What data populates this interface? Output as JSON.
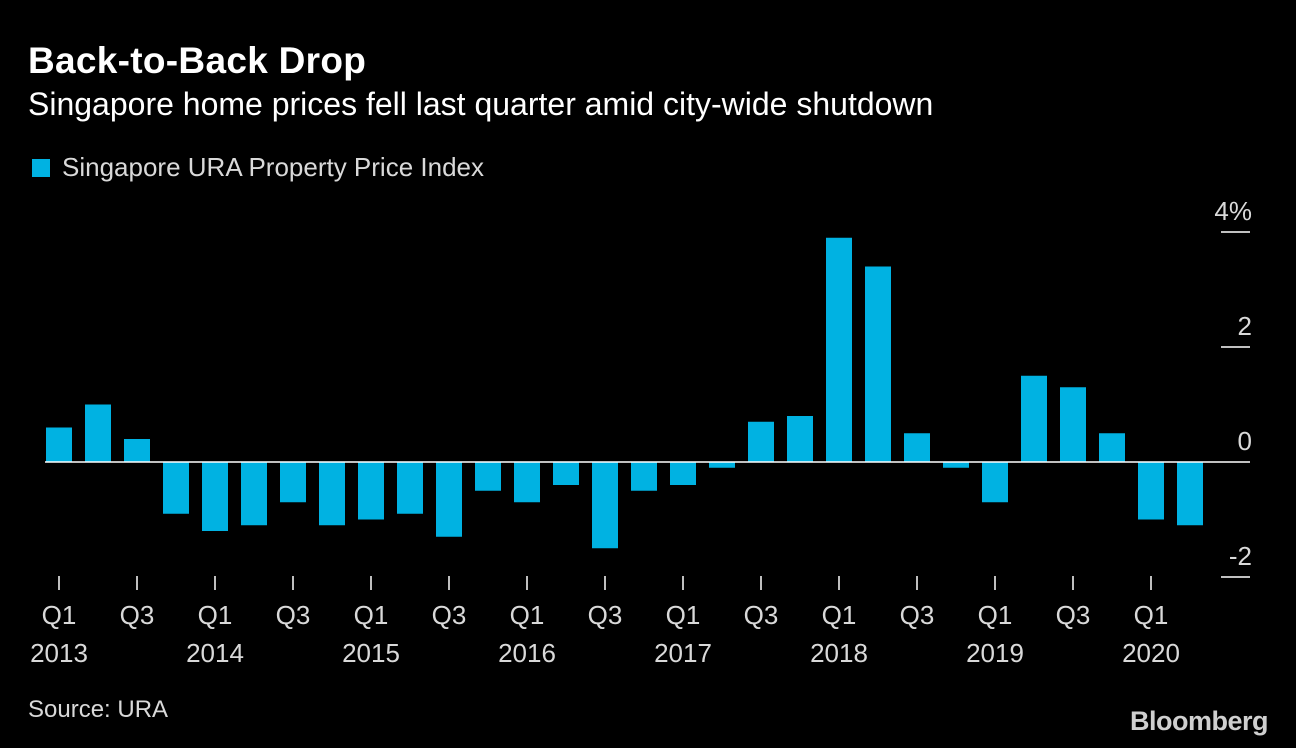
{
  "title": "Back-to-Back Drop",
  "subtitle": "Singapore home prices fell last quarter amid city-wide shutdown",
  "source": "Source: URA",
  "brand": "Bloomberg",
  "colors": {
    "background": "#000000",
    "bar": "#00b2e2",
    "text": "#ffffff",
    "muted_text": "#d9d9d9",
    "zero_line": "#ffffff"
  },
  "chart_data": {
    "type": "bar",
    "title": "Back-to-Back Drop",
    "subtitle": "Singapore home prices fell last quarter amid city-wide shutdown",
    "legend": [
      "Singapore URA Property Price Index"
    ],
    "legend_position": "top-left",
    "grid": false,
    "y_axis_position": "right",
    "ylim": [
      -2.2,
      4.3
    ],
    "y_ticks": [
      {
        "value": 4,
        "label": "4%"
      },
      {
        "value": 2,
        "label": "2"
      },
      {
        "value": 0,
        "label": "0"
      },
      {
        "value": -2,
        "label": "-2"
      }
    ],
    "categories": [
      "Q1 2013",
      "Q2 2013",
      "Q3 2013",
      "Q4 2013",
      "Q1 2014",
      "Q2 2014",
      "Q3 2014",
      "Q4 2014",
      "Q1 2015",
      "Q2 2015",
      "Q3 2015",
      "Q4 2015",
      "Q1 2016",
      "Q2 2016",
      "Q3 2016",
      "Q4 2016",
      "Q1 2017",
      "Q2 2017",
      "Q3 2017",
      "Q4 2017",
      "Q1 2018",
      "Q2 2018",
      "Q3 2018",
      "Q4 2018",
      "Q1 2019",
      "Q2 2019",
      "Q3 2019",
      "Q4 2019",
      "Q1 2020",
      "Q2 2020"
    ],
    "series": [
      {
        "name": "Singapore URA Property Price Index",
        "values": [
          0.6,
          1.0,
          0.4,
          -0.9,
          -1.2,
          -1.1,
          -0.7,
          -1.1,
          -1.0,
          -0.9,
          -1.3,
          -0.5,
          -0.7,
          -0.4,
          -1.5,
          -0.5,
          -0.4,
          -0.1,
          0.7,
          0.8,
          3.9,
          3.4,
          0.5,
          -0.1,
          -0.7,
          1.5,
          1.3,
          0.5,
          -1.0,
          -1.1
        ]
      }
    ],
    "x_tick_labels": [
      {
        "index": 0,
        "quarter": "Q1",
        "year": "2013"
      },
      {
        "index": 2,
        "quarter": "Q3",
        "year": ""
      },
      {
        "index": 4,
        "quarter": "Q1",
        "year": "2014"
      },
      {
        "index": 6,
        "quarter": "Q3",
        "year": ""
      },
      {
        "index": 8,
        "quarter": "Q1",
        "year": "2015"
      },
      {
        "index": 10,
        "quarter": "Q3",
        "year": ""
      },
      {
        "index": 12,
        "quarter": "Q1",
        "year": "2016"
      },
      {
        "index": 14,
        "quarter": "Q3",
        "year": ""
      },
      {
        "index": 16,
        "quarter": "Q1",
        "year": "2017"
      },
      {
        "index": 18,
        "quarter": "Q3",
        "year": ""
      },
      {
        "index": 20,
        "quarter": "Q1",
        "year": "2018"
      },
      {
        "index": 22,
        "quarter": "Q3",
        "year": ""
      },
      {
        "index": 24,
        "quarter": "Q1",
        "year": "2019"
      },
      {
        "index": 26,
        "quarter": "Q3",
        "year": ""
      },
      {
        "index": 28,
        "quarter": "Q1",
        "year": "2020"
      }
    ]
  }
}
